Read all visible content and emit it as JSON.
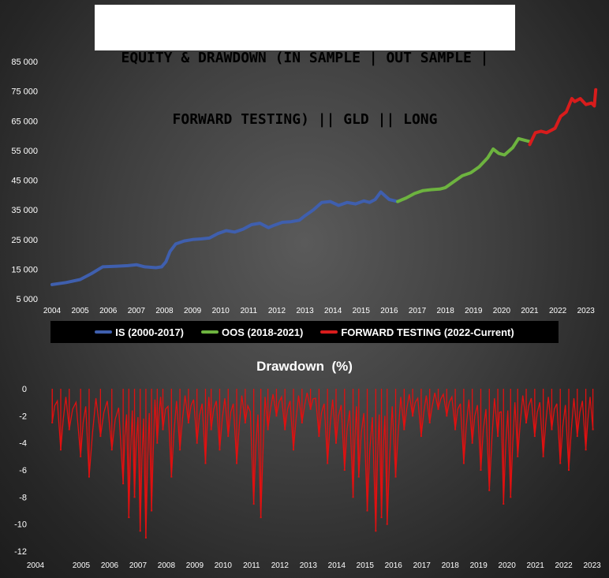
{
  "title": {
    "line1": "EQUITY & DRAWDOWN (IN SAMPLE | OUT SAMPLE |",
    "line2": "FORWARD TESTING) || GLD || LONG"
  },
  "legend": [
    {
      "label": "IS (2000-2017)",
      "color": "#3f5fae"
    },
    {
      "label": "OOS (2018-2021)",
      "color": "#6db33f"
    },
    {
      "label": "FORWARD TESTING (2022-Current)",
      "color": "#d81c1c"
    }
  ],
  "drawdown_title": "Drawdown  (%)",
  "chart_data": [
    {
      "type": "line",
      "name": "equity",
      "xlim": [
        2004,
        2023.4
      ],
      "ylim": [
        5000,
        85000
      ],
      "x_ticks": [
        "2004",
        "2005",
        "2006",
        "2007",
        "2008",
        "2009",
        "2010",
        "2011",
        "2012",
        "2013",
        "2014",
        "2015",
        "2016",
        "2017",
        "2018",
        "2019",
        "2020",
        "2021",
        "2022",
        "2023"
      ],
      "y_ticks": [
        "5 000",
        "15 000",
        "25 000",
        "35 000",
        "45 000",
        "55 000",
        "65 000",
        "75 000",
        "85 000"
      ],
      "grid": false,
      "legend_position": "bottom",
      "series": [
        {
          "name": "IS (2000-2017)",
          "color": "#3f5fae",
          "x": [
            2004.0,
            2004.5,
            2005.0,
            2005.4,
            2005.8,
            2006.3,
            2006.7,
            2007.0,
            2007.3,
            2007.7,
            2007.9,
            2008.05,
            2008.2,
            2008.4,
            2008.7,
            2009.0,
            2009.3,
            2009.6,
            2009.9,
            2010.2,
            2010.5,
            2010.8,
            2011.1,
            2011.4,
            2011.7,
            2011.9,
            2012.2,
            2012.5,
            2012.8,
            2013.0,
            2013.3,
            2013.6,
            2013.9,
            2014.2,
            2014.5,
            2014.8,
            2015.1,
            2015.3,
            2015.5,
            2015.7,
            2016.0,
            2016.3
          ],
          "y": [
            9800,
            10500,
            11500,
            13500,
            15800,
            16000,
            16200,
            16500,
            15800,
            15500,
            15800,
            17500,
            21000,
            23500,
            24500,
            25000,
            25200,
            25500,
            27000,
            28000,
            27500,
            28500,
            30000,
            30500,
            29000,
            29800,
            30800,
            31000,
            31500,
            33000,
            35000,
            37500,
            37800,
            36500,
            37500,
            37000,
            38000,
            37500,
            38500,
            41000,
            38500,
            37800
          ]
        },
        {
          "name": "OOS (2018-2021)",
          "color": "#6db33f",
          "x": [
            2016.3,
            2016.6,
            2016.9,
            2017.2,
            2017.5,
            2017.8,
            2018.0,
            2018.3,
            2018.6,
            2018.9,
            2019.2,
            2019.5,
            2019.7,
            2019.9,
            2020.1,
            2020.4,
            2020.6,
            2020.8,
            2021.0
          ],
          "y": [
            37800,
            39000,
            40500,
            41500,
            41800,
            42000,
            42500,
            44500,
            46500,
            47500,
            49500,
            52500,
            55500,
            54000,
            53500,
            56000,
            59000,
            58500,
            58000
          ]
        },
        {
          "name": "FORWARD TESTING (2022-Current)",
          "color": "#d81c1c",
          "x": [
            2021.0,
            2021.2,
            2021.4,
            2021.6,
            2021.9,
            2022.1,
            2022.3,
            2022.5,
            2022.6,
            2022.8,
            2023.0,
            2023.2,
            2023.3,
            2023.35
          ],
          "y": [
            57000,
            61000,
            61500,
            61000,
            62500,
            66500,
            68000,
            72500,
            71500,
            72500,
            70500,
            71000,
            70000,
            75500
          ]
        }
      ]
    },
    {
      "type": "area",
      "name": "drawdown",
      "xlim": [
        2004,
        2023.4
      ],
      "ylim": [
        -12,
        0
      ],
      "x_ticks": [
        "2004",
        "2005",
        "2006",
        "2007",
        "2008",
        "2009",
        "2010",
        "2011",
        "2012",
        "2013",
        "2014",
        "2015",
        "2016",
        "2017",
        "2018",
        "2019",
        "2020",
        "2021",
        "2022",
        "2023"
      ],
      "y_ticks": [
        "0",
        "-2",
        "-4",
        "-6",
        "-8",
        "-10",
        "-12"
      ],
      "grid": false,
      "series": [
        {
          "color": "#e01010",
          "x": [
            2004.2,
            2004.5,
            2004.8,
            2005.2,
            2005.5,
            2005.9,
            2006.3,
            2006.7,
            2006.9,
            2007.1,
            2007.3,
            2007.5,
            2007.7,
            2007.9,
            2008.1,
            2008.4,
            2008.7,
            2009.0,
            2009.3,
            2009.6,
            2009.8,
            2010.1,
            2010.4,
            2010.7,
            2011.0,
            2011.3,
            2011.55,
            2011.8,
            2012.1,
            2012.4,
            2012.7,
            2013.0,
            2013.3,
            2013.6,
            2013.9,
            2014.2,
            2014.5,
            2014.8,
            2015.0,
            2015.3,
            2015.6,
            2015.8,
            2016.0,
            2016.3,
            2016.6,
            2016.9,
            2017.2,
            2017.5,
            2017.8,
            2018.1,
            2018.4,
            2018.7,
            2019.0,
            2019.3,
            2019.6,
            2019.9,
            2020.1,
            2020.35,
            2020.6,
            2020.9,
            2021.2,
            2021.5,
            2021.8,
            2022.1,
            2022.4,
            2022.7,
            2023.0,
            2023.25
          ],
          "y": [
            -2.5,
            -4.5,
            -3.0,
            -5.0,
            -6.5,
            -3.5,
            -4.5,
            -7.0,
            -9.5,
            -8.0,
            -10.5,
            -11.0,
            -9.0,
            -4.0,
            -3.0,
            -6.5,
            -4.5,
            -2.5,
            -4.0,
            -5.5,
            -3.0,
            -4.5,
            -3.5,
            -5.5,
            -2.5,
            -8.5,
            -9.5,
            -3.0,
            -2.0,
            -3.0,
            -4.5,
            -2.5,
            -1.5,
            -3.5,
            -5.5,
            -4.0,
            -6.0,
            -8.0,
            -6.5,
            -9.0,
            -10.5,
            -9.5,
            -10.0,
            -6.5,
            -3.0,
            -2.0,
            -3.5,
            -2.5,
            -1.5,
            -2.0,
            -3.0,
            -5.5,
            -4.0,
            -6.0,
            -7.5,
            -3.5,
            -8.5,
            -8.0,
            -5.0,
            -2.5,
            -3.5,
            -5.0,
            -3.0,
            -5.5,
            -6.0,
            -3.5,
            -4.5,
            -3.0
          ]
        }
      ]
    }
  ]
}
